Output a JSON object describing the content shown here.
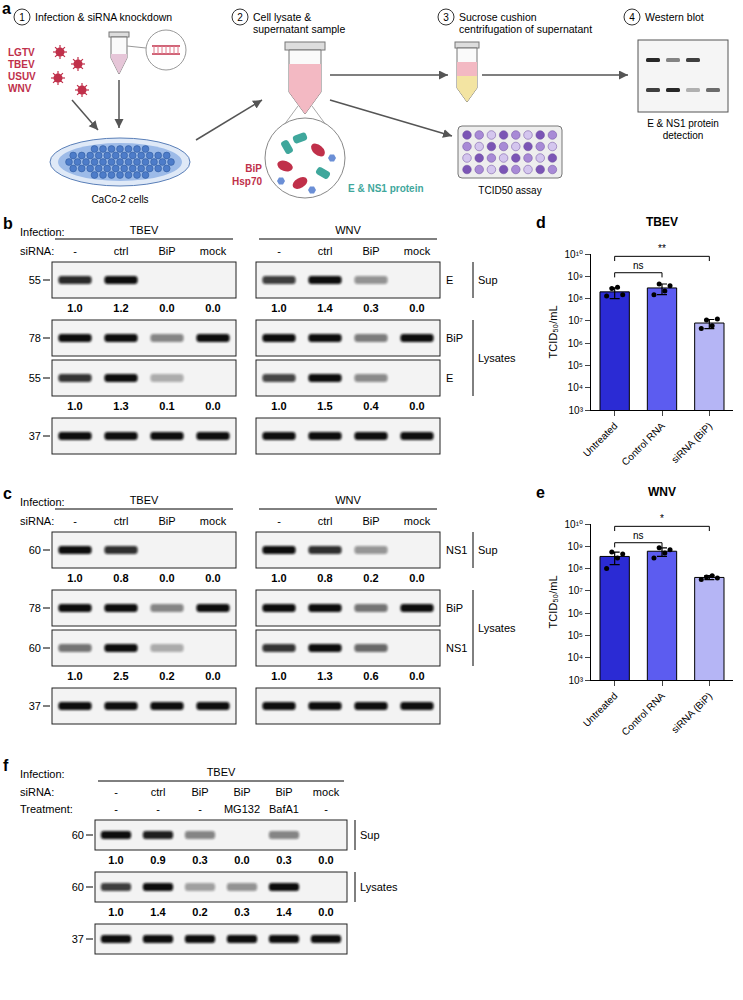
{
  "panel_a": {
    "letter": "a",
    "steps": [
      {
        "number": "1",
        "title": "Infection & siRNA knockdown"
      },
      {
        "number": "2",
        "title": "Cell lysate & supernatant sample"
      },
      {
        "number": "3",
        "title": "Sucrose cushion centrifugation of supernatant"
      },
      {
        "number": "4",
        "title": "Western blot"
      }
    ],
    "viruses": [
      "LGTV",
      "TBEV",
      "USUV",
      "WNV"
    ],
    "cells": "CaCo-2 cells",
    "chaperones": [
      "BiP",
      "Hsp70"
    ],
    "viral_proteins": "E & NS1 protein",
    "assay": "TCID50 assay",
    "detection": "E & NS1 protein detection"
  },
  "panel_b": {
    "letter": "b",
    "row_labels": {
      "infection": "Infection:",
      "sirna": "siRNA:"
    },
    "groups": [
      {
        "infection": "TBEV",
        "sirna": [
          "-",
          "ctrl",
          "BiP",
          "mock"
        ]
      },
      {
        "infection": "WNV",
        "sirna": [
          "-",
          "ctrl",
          "BiP",
          "mock"
        ]
      }
    ],
    "blots": [
      {
        "protein": "E",
        "fraction": "Sup",
        "mw": 55,
        "values": [
          [
            1.0,
            1.2,
            0.0,
            0.0
          ],
          [
            1.0,
            1.4,
            0.3,
            0.0
          ]
        ],
        "value_labels": [
          [
            "1.0",
            "1.2",
            "0.0",
            "0.0"
          ],
          [
            "1.0",
            "1.4",
            "0.3",
            "0.0"
          ]
        ]
      },
      {
        "protein": "BiP",
        "fraction": "Lysates",
        "mw": 78,
        "bands": [
          [
            1,
            1,
            0.3,
            1
          ],
          [
            1,
            1,
            0.35,
            1
          ]
        ]
      },
      {
        "protein": "E",
        "fraction": "Lysates",
        "mw": 55,
        "values": [
          [
            1.0,
            1.3,
            0.1,
            0.0
          ],
          [
            1.0,
            1.5,
            0.4,
            0.0
          ]
        ],
        "value_labels": [
          [
            "1.0",
            "1.3",
            "0.1",
            "0.0"
          ],
          [
            "1.0",
            "1.5",
            "0.4",
            "0.0"
          ]
        ]
      },
      {
        "mw": 37,
        "bands": [
          [
            1,
            1,
            1,
            1
          ],
          [
            1,
            1,
            1,
            1
          ]
        ]
      }
    ]
  },
  "panel_c": {
    "letter": "c",
    "row_labels": {
      "infection": "Infection:",
      "sirna": "siRNA:"
    },
    "groups": [
      {
        "infection": "TBEV",
        "sirna": [
          "-",
          "ctrl",
          "BiP",
          "mock"
        ]
      },
      {
        "infection": "WNV",
        "sirna": [
          "-",
          "ctrl",
          "BiP",
          "mock"
        ]
      }
    ],
    "blots": [
      {
        "protein": "NS1",
        "fraction": "Sup",
        "mw": 60,
        "values": [
          [
            1.0,
            0.8,
            0.0,
            0.0
          ],
          [
            1.0,
            0.8,
            0.2,
            0.0
          ]
        ],
        "value_labels": [
          [
            "1.0",
            "0.8",
            "0.0",
            "0.0"
          ],
          [
            "1.0",
            "0.8",
            "0.2",
            "0.0"
          ]
        ]
      },
      {
        "protein": "BiP",
        "fraction": "Lysates",
        "mw": 78,
        "bands": [
          [
            1,
            1,
            0.3,
            1
          ],
          [
            1,
            1,
            0.4,
            1
          ]
        ]
      },
      {
        "protein": "NS1",
        "fraction": "Lysates",
        "mw": 60,
        "values": [
          [
            1.0,
            2.5,
            0.2,
            0.0
          ],
          [
            1.0,
            1.3,
            0.6,
            0.0
          ]
        ],
        "value_labels": [
          [
            "1.0",
            "2.5",
            "0.2",
            "0.0"
          ],
          [
            "1.0",
            "1.3",
            "0.6",
            "0.0"
          ]
        ]
      },
      {
        "mw": 37,
        "bands": [
          [
            1,
            1,
            1,
            1
          ],
          [
            1,
            1,
            1,
            1
          ]
        ]
      }
    ]
  },
  "panel_f": {
    "letter": "f",
    "row_labels": {
      "infection": "Infection:",
      "sirna": "siRNA:",
      "treatment": "Treatment:"
    },
    "groups": [
      {
        "infection": "TBEV",
        "sirna": [
          "-",
          "ctrl",
          "BiP",
          "BiP",
          "BiP",
          "mock"
        ],
        "treatment": [
          "-",
          "-",
          "-",
          "MG132",
          "BafA1",
          "-"
        ]
      }
    ],
    "blots": [
      {
        "fraction": "Sup",
        "mw": 60,
        "values": [
          [
            1.0,
            0.9,
            0.3,
            0.0,
            0.3,
            0.0
          ]
        ],
        "value_labels": [
          [
            "1.0",
            "0.9",
            "0.3",
            "0.0",
            "0.3",
            "0.0"
          ]
        ]
      },
      {
        "fraction": "Lysates",
        "mw": 60,
        "values": [
          [
            1.0,
            1.4,
            0.2,
            0.3,
            1.4,
            0.0
          ]
        ],
        "value_labels": [
          [
            "1.0",
            "1.4",
            "0.2",
            "0.3",
            "1.4",
            "0.0"
          ]
        ]
      },
      {
        "mw": 37,
        "bands": [
          [
            1,
            1,
            1,
            1,
            1,
            1
          ]
        ]
      }
    ]
  },
  "chart_data": [
    {
      "panel": "d",
      "type": "bar",
      "title": "TBEV",
      "categories": [
        "Untreated",
        "Control RNA",
        "siRNA (BiP)"
      ],
      "values": [
        200000000,
        300000000,
        8000000
      ],
      "errors": [
        100000000,
        150000000,
        3500000
      ],
      "points": [
        [
          130000000,
          280000000,
          320000000,
          150000000
        ],
        [
          150000000,
          450000000,
          220000000,
          380000000
        ],
        [
          4500000,
          11000000,
          6000000,
          12000000
        ]
      ],
      "colors": [
        "#2b2bd4",
        "#5c5cf0",
        "#b5b5f5"
      ],
      "y_label": "TCID₅₀/mL",
      "log": "y",
      "grid": false,
      "ylim": [
        1000,
        10000000000
      ],
      "yticks": [
        {
          "value": 1000,
          "label": "10³"
        },
        {
          "value": 10000,
          "label": "10⁴"
        },
        {
          "value": 100000,
          "label": "10⁵"
        },
        {
          "value": 1000000,
          "label": "10⁶"
        },
        {
          "value": 10000000,
          "label": "10⁷"
        },
        {
          "value": 100000000,
          "label": "10⁸"
        },
        {
          "value": 1000000000,
          "label": "10⁹"
        },
        {
          "value": 10000000000,
          "label": "10¹⁰"
        }
      ],
      "comparisons": [
        {
          "from": "Untreated",
          "to": "Control RNA",
          "label": "ns"
        },
        {
          "from": "Untreated",
          "to": "siRNA (BiP)",
          "label": "**"
        }
      ]
    },
    {
      "panel": "e",
      "type": "bar",
      "title": "WNV",
      "categories": [
        "Untreated",
        "Control RNA",
        "siRNA (BiP)"
      ],
      "values": [
        350000000,
        600000000,
        40000000
      ],
      "errors": [
        200000000,
        250000000,
        8000000
      ],
      "points": [
        [
          100000000,
          550000000,
          300000000,
          450000000
        ],
        [
          300000000,
          850000000,
          500000000,
          700000000
        ],
        [
          32000000,
          42000000,
          48000000,
          38000000
        ]
      ],
      "colors": [
        "#2b2bd4",
        "#5c5cf0",
        "#b5b5f5"
      ],
      "y_label": "TCID₅₀/mL",
      "log": "y",
      "grid": false,
      "ylim": [
        1000,
        10000000000
      ],
      "yticks": [
        {
          "value": 1000,
          "label": "10³"
        },
        {
          "value": 10000,
          "label": "10⁴"
        },
        {
          "value": 100000,
          "label": "10⁵"
        },
        {
          "value": 1000000,
          "label": "10⁶"
        },
        {
          "value": 10000000,
          "label": "10⁷"
        },
        {
          "value": 100000000,
          "label": "10⁸"
        },
        {
          "value": 1000000000,
          "label": "10⁹"
        },
        {
          "value": 10000000000,
          "label": "10¹⁰"
        }
      ],
      "comparisons": [
        {
          "from": "Untreated",
          "to": "Control RNA",
          "label": "ns"
        },
        {
          "from": "Untreated",
          "to": "siRNA (BiP)",
          "label": "*"
        }
      ]
    }
  ]
}
